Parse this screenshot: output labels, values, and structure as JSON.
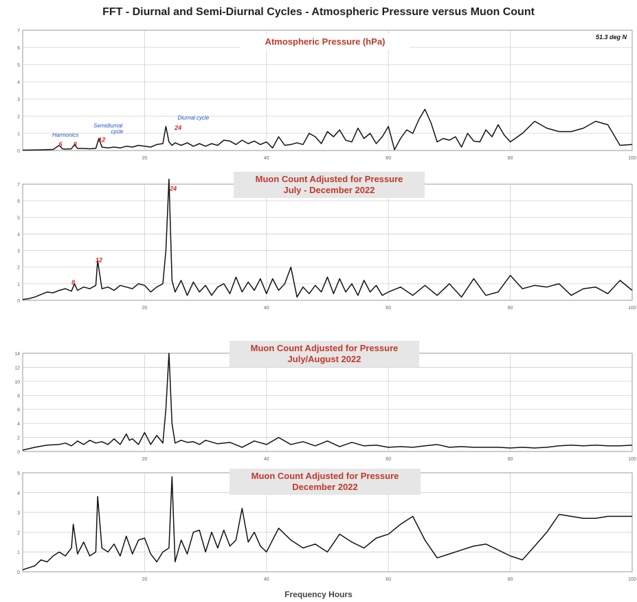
{
  "page": {
    "title": "FFT - Diurnal and Semi-Diurnal Cycles - Atmospheric Pressure versus Muon Count",
    "xlabel": "Frequency Hours"
  },
  "colors": {
    "line": "#111111",
    "title_red": "#c0392b",
    "annot_red": "#e02020",
    "annot_blue": "#2255cc",
    "grid": "#cfcfcf",
    "box_bg": "#e6e6e6"
  },
  "chart_data": [
    {
      "type": "line",
      "title": "Atmospheric Pressure (hPa)",
      "subtitle": "",
      "note": "51.3 deg N",
      "xlim": [
        0,
        100
      ],
      "ylim": [
        0,
        7
      ],
      "xticks": [
        20,
        40,
        60,
        80,
        100
      ],
      "yticks": [
        0,
        1,
        2,
        3,
        4,
        5,
        6,
        7
      ],
      "xtick_labels": [
        "20",
        "40",
        "60",
        "80",
        "100"
      ],
      "ytick_labels": [
        "0",
        "1",
        "2",
        "3",
        "4",
        "5",
        "6",
        "7"
      ],
      "grid": true,
      "annotations": [
        {
          "text": "Harmonics",
          "x": 7,
          "y": 0.8,
          "color": "blue"
        },
        {
          "text": "6",
          "x": 6.2,
          "y": 0.25,
          "color": "red"
        },
        {
          "text": "8",
          "x": 8.6,
          "y": 0.25,
          "color": "red"
        },
        {
          "text": "Semidiurnal",
          "x": 14,
          "y": 1.35,
          "color": "blue"
        },
        {
          "text": "cycle",
          "x": 15.5,
          "y": 1.0,
          "color": "blue"
        },
        {
          "text": "12",
          "x": 13,
          "y": 0.5,
          "color": "red"
        },
        {
          "text": "Diurnal cycle",
          "x": 28,
          "y": 1.8,
          "color": "blue"
        },
        {
          "text": "24",
          "x": 25.5,
          "y": 1.2,
          "color": "red"
        }
      ],
      "x": [
        0,
        2,
        4,
        5,
        6,
        6.5,
        7,
        8,
        8.5,
        9,
        10,
        11,
        12,
        12.5,
        13,
        14,
        15,
        16,
        17,
        18,
        19,
        20,
        21,
        22,
        23,
        23.5,
        24,
        24.5,
        25,
        26,
        27,
        28,
        29,
        30,
        31,
        32,
        33,
        34,
        35,
        36,
        37,
        38,
        39,
        40,
        41,
        42,
        43,
        44,
        45,
        46,
        47,
        48,
        49,
        50,
        51,
        52,
        53,
        54,
        55,
        56,
        57,
        58,
        59,
        60,
        61,
        62,
        63,
        64,
        65,
        66,
        67,
        68,
        69,
        70,
        71,
        72,
        73,
        74,
        75,
        76,
        77,
        78,
        79,
        80,
        82,
        84,
        86,
        88,
        90,
        92,
        94,
        96,
        98,
        100
      ],
      "values": [
        0.02,
        0.03,
        0.05,
        0.06,
        0.3,
        0.1,
        0.08,
        0.1,
        0.35,
        0.12,
        0.12,
        0.1,
        0.12,
        0.7,
        0.2,
        0.15,
        0.2,
        0.15,
        0.25,
        0.2,
        0.3,
        0.25,
        0.2,
        0.35,
        0.4,
        1.4,
        0.5,
        0.3,
        0.45,
        0.3,
        0.45,
        0.25,
        0.4,
        0.25,
        0.4,
        0.3,
        0.6,
        0.55,
        0.35,
        0.6,
        0.4,
        0.55,
        0.35,
        0.5,
        0.15,
        0.8,
        0.3,
        0.35,
        0.45,
        0.35,
        1.0,
        0.8,
        0.4,
        1.1,
        0.8,
        1.2,
        0.6,
        0.5,
        1.3,
        0.7,
        1.0,
        0.4,
        0.8,
        1.4,
        0.05,
        0.7,
        1.2,
        1.0,
        1.8,
        2.4,
        1.6,
        0.5,
        0.7,
        0.6,
        0.8,
        0.2,
        1.0,
        0.55,
        0.5,
        1.2,
        0.8,
        1.5,
        0.9,
        0.5,
        1.0,
        1.7,
        1.3,
        1.1,
        1.1,
        1.3,
        1.7,
        1.5,
        0.3,
        0.35
      ]
    },
    {
      "type": "line",
      "title": "Muon Count Adjusted for Pressure",
      "subtitle": "July - December 2022",
      "xlim": [
        0,
        100
      ],
      "ylim": [
        0,
        7
      ],
      "xticks": [
        20,
        40,
        60,
        80,
        100
      ],
      "yticks": [
        0,
        1,
        2,
        3,
        4,
        5,
        6,
        7
      ],
      "xtick_labels": [
        "20",
        "40",
        "60",
        "80",
        "100"
      ],
      "ytick_labels": [
        "0",
        "1",
        "2",
        "3",
        "4",
        "5",
        "6",
        "7"
      ],
      "grid": true,
      "annotations": [
        {
          "text": "8",
          "x": 8.3,
          "y": 0.95,
          "color": "red"
        },
        {
          "text": "12",
          "x": 12.5,
          "y": 2.3,
          "color": "red"
        },
        {
          "text": "24",
          "x": 24.7,
          "y": 6.6,
          "color": "red"
        }
      ],
      "x": [
        0,
        1,
        2,
        3,
        4,
        5,
        6,
        7,
        8,
        8.5,
        9,
        10,
        11,
        12,
        12.3,
        13,
        14,
        15,
        16,
        17,
        18,
        19,
        20,
        21,
        22,
        23,
        23.5,
        24,
        24.5,
        25,
        26,
        27,
        28,
        29,
        30,
        31,
        32,
        33,
        34,
        35,
        36,
        37,
        38,
        39,
        40,
        41,
        42,
        43,
        44,
        45,
        46,
        47,
        48,
        49,
        50,
        51,
        52,
        53,
        54,
        55,
        56,
        57,
        58,
        59,
        60,
        62,
        64,
        66,
        68,
        70,
        72,
        74,
        76,
        78,
        80,
        82,
        84,
        86,
        88,
        90,
        92,
        94,
        96,
        98,
        100
      ],
      "values": [
        0.05,
        0.1,
        0.2,
        0.35,
        0.5,
        0.45,
        0.6,
        0.7,
        0.55,
        1.0,
        0.6,
        0.8,
        0.7,
        0.9,
        2.4,
        0.7,
        0.8,
        0.6,
        0.9,
        0.8,
        0.7,
        1.0,
        0.9,
        0.5,
        0.8,
        1.0,
        3.0,
        7.3,
        1.2,
        0.5,
        1.2,
        0.3,
        1.1,
        0.5,
        0.9,
        0.3,
        0.8,
        1.0,
        0.4,
        1.4,
        0.5,
        1.1,
        0.6,
        1.3,
        0.4,
        1.3,
        0.6,
        1.0,
        2.0,
        0.2,
        0.8,
        0.4,
        0.9,
        0.5,
        1.4,
        0.4,
        1.3,
        0.5,
        1.0,
        0.3,
        1.2,
        0.5,
        0.9,
        0.3,
        0.5,
        0.8,
        0.3,
        0.9,
        0.3,
        1.0,
        0.2,
        1.3,
        0.3,
        0.5,
        1.5,
        0.7,
        0.9,
        0.8,
        1.0,
        0.3,
        0.7,
        0.8,
        0.4,
        1.2,
        0.6
      ]
    },
    {
      "type": "line",
      "title": "Muon Count Adjusted for Pressure",
      "subtitle": "July/August 2022",
      "xlim": [
        0,
        100
      ],
      "ylim": [
        0,
        14
      ],
      "xticks": [
        20,
        40,
        60,
        80,
        100
      ],
      "yticks": [
        0,
        2,
        4,
        6,
        8,
        10,
        12,
        14
      ],
      "xtick_labels": [
        "20",
        "40",
        "60",
        "80",
        "100"
      ],
      "ytick_labels": [
        "0",
        "2",
        "4",
        "6",
        "8",
        "10",
        "12",
        "14"
      ],
      "grid": true,
      "x": [
        0,
        2,
        4,
        6,
        7,
        8,
        9,
        10,
        11,
        12,
        13,
        14,
        15,
        16,
        17,
        17.5,
        18,
        19,
        20,
        21,
        22,
        23,
        23.5,
        24,
        24.5,
        25,
        26,
        27,
        28,
        29,
        30,
        32,
        34,
        36,
        38,
        40,
        42,
        44,
        46,
        48,
        50,
        52,
        54,
        56,
        58,
        60,
        62,
        64,
        66,
        68,
        70,
        72,
        74,
        76,
        78,
        80,
        82,
        84,
        86,
        88,
        90,
        92,
        94,
        96,
        98,
        100
      ],
      "values": [
        0.2,
        0.6,
        0.9,
        1.0,
        1.2,
        0.8,
        1.5,
        1.0,
        1.6,
        1.2,
        1.4,
        1.0,
        1.8,
        1.0,
        2.5,
        1.6,
        1.8,
        1.0,
        2.7,
        1.0,
        2.3,
        1.2,
        6.0,
        14.0,
        4.0,
        1.2,
        1.6,
        1.3,
        1.4,
        1.0,
        1.6,
        1.1,
        1.3,
        0.6,
        1.5,
        1.0,
        2.0,
        1.0,
        1.4,
        0.8,
        1.5,
        0.7,
        1.3,
        0.8,
        0.9,
        0.6,
        0.7,
        0.6,
        0.8,
        1.0,
        0.6,
        0.7,
        0.6,
        0.6,
        0.6,
        0.5,
        0.6,
        0.5,
        0.6,
        0.8,
        0.9,
        0.8,
        0.9,
        0.8,
        0.8,
        0.9
      ]
    },
    {
      "type": "line",
      "title": "Muon Count Adjusted for Pressure",
      "subtitle": "December 2022",
      "xlim": [
        0,
        100
      ],
      "ylim": [
        0,
        5
      ],
      "xticks": [
        20,
        40,
        60,
        80,
        100
      ],
      "yticks": [
        0,
        1,
        2,
        3,
        4,
        5
      ],
      "xtick_labels": [
        "20",
        "40",
        "60",
        "80",
        "100"
      ],
      "ytick_labels": [
        "0",
        "1",
        "2",
        "3",
        "4",
        "5"
      ],
      "grid": true,
      "x": [
        0,
        1,
        2,
        3,
        4,
        5,
        6,
        7,
        8,
        8.3,
        9,
        10,
        11,
        12,
        12.3,
        13,
        14,
        15,
        16,
        17,
        18,
        19,
        20,
        21,
        22,
        23,
        24,
        24.5,
        25,
        26,
        27,
        28,
        29,
        30,
        31,
        32,
        33,
        34,
        35,
        36,
        37,
        38,
        39,
        40,
        42,
        44,
        46,
        48,
        50,
        52,
        54,
        56,
        58,
        60,
        62,
        64,
        66,
        68,
        70,
        72,
        74,
        76,
        78,
        80,
        82,
        84,
        86,
        88,
        90,
        92,
        94,
        96,
        98,
        100
      ],
      "values": [
        0.1,
        0.2,
        0.3,
        0.6,
        0.5,
        0.8,
        1.0,
        0.8,
        1.2,
        2.4,
        0.9,
        1.5,
        0.8,
        1.0,
        3.8,
        1.2,
        1.0,
        1.4,
        0.8,
        1.8,
        0.9,
        1.6,
        1.7,
        0.9,
        0.5,
        1.0,
        1.2,
        4.8,
        0.5,
        1.6,
        0.9,
        2.0,
        2.1,
        1.0,
        2.0,
        1.2,
        2.1,
        1.3,
        1.6,
        3.2,
        1.5,
        2.0,
        1.3,
        1.0,
        2.2,
        1.6,
        1.2,
        1.4,
        1.0,
        1.9,
        1.5,
        1.2,
        1.7,
        1.9,
        2.4,
        2.8,
        1.6,
        0.7,
        0.9,
        1.1,
        1.3,
        1.4,
        1.1,
        0.8,
        0.6,
        1.3,
        2.0,
        2.9,
        2.8,
        2.7,
        2.7,
        2.8,
        2.8,
        2.8
      ]
    }
  ]
}
